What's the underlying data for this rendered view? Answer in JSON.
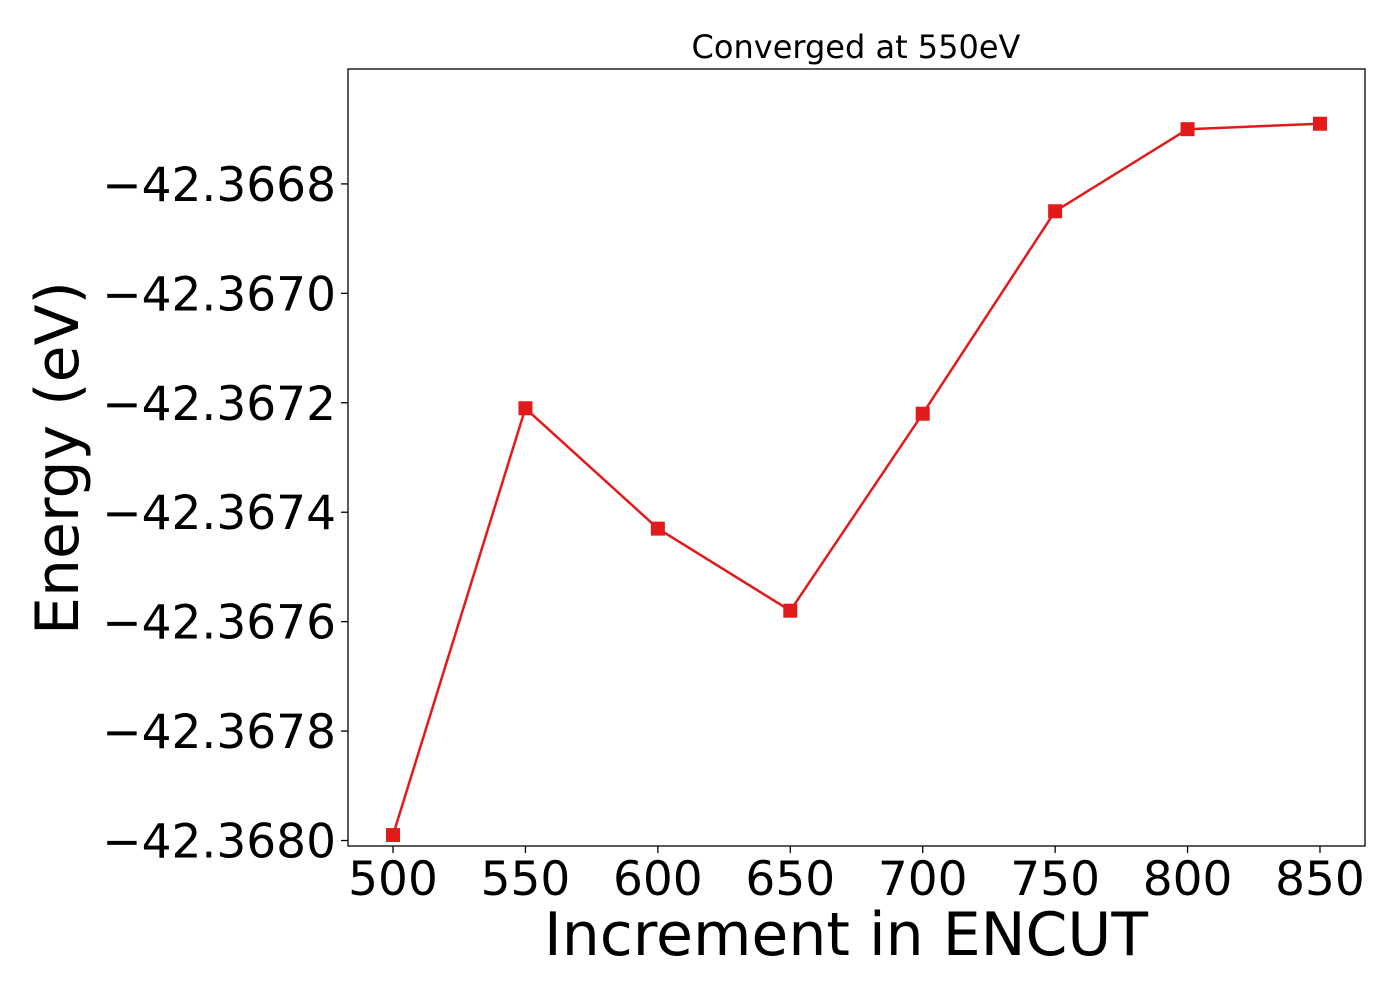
{
  "chart_data": {
    "type": "line",
    "title": "Converged at 550eV",
    "xlabel": "Increment in ENCUT",
    "ylabel": "Energy (eV)",
    "x": [
      500,
      550,
      600,
      650,
      700,
      750,
      800,
      850
    ],
    "series": [
      {
        "values": [
          -42.36799,
          -42.36721,
          -42.36743,
          -42.36758,
          -42.36722,
          -42.36685,
          -42.3667,
          -42.36669
        ],
        "color": "#e31a1c",
        "marker": "square"
      }
    ],
    "xticks": [
      500,
      550,
      600,
      650,
      700,
      750,
      800,
      850
    ],
    "yticks": [
      -42.368,
      -42.3678,
      -42.3676,
      -42.3674,
      -42.3672,
      -42.367,
      -42.3668
    ],
    "ytick_labels": [
      "−42.3680",
      "−42.3678",
      "−42.3676",
      "−42.3674",
      "−42.3672",
      "−42.3670",
      "−42.3668"
    ],
    "xlim": [
      483,
      867
    ],
    "ylim": [
      -42.36801,
      -42.36659
    ],
    "grid": false,
    "legend": "none"
  }
}
